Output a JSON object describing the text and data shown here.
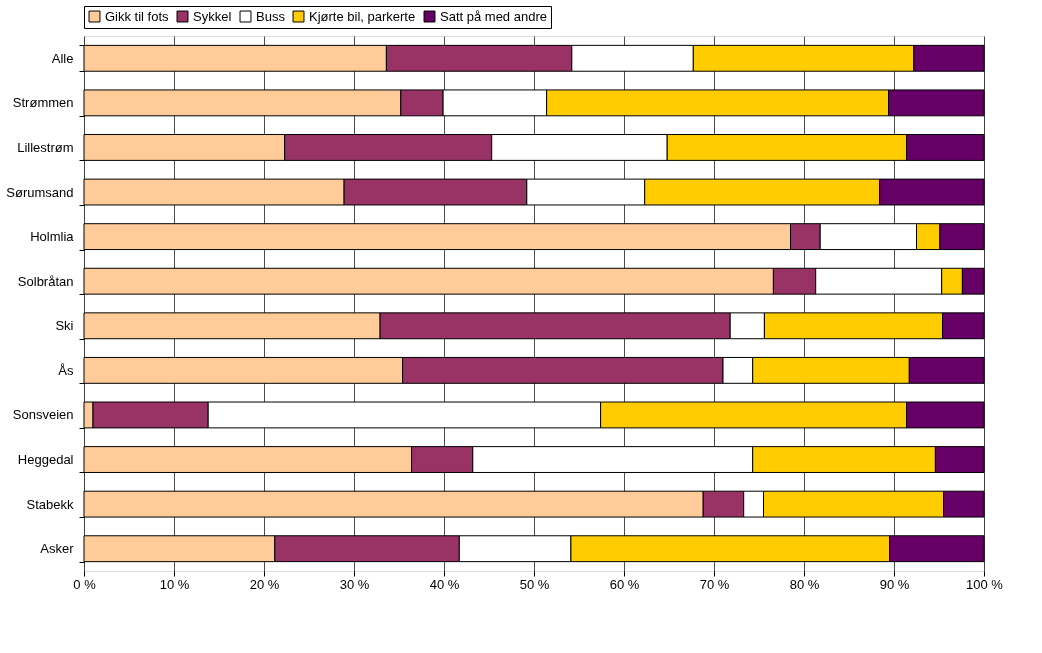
{
  "chart_data": {
    "type": "bar",
    "orientation": "horizontal",
    "stacked": true,
    "legend": "top",
    "grid": "x",
    "categories": [
      "Alle",
      "Strømmen",
      "Lillestrøm",
      "Sørumsand",
      "Holmlia",
      "Solbråtan",
      "Ski",
      "Ås",
      "Sonsveien",
      "Heggedal",
      "Stabekk",
      "Asker"
    ],
    "series": [
      {
        "name": "Gikk til fots",
        "color": "#ffcc99",
        "values": [
          33.6,
          35.2,
          22.3,
          28.9,
          78.5,
          76.6,
          32.9,
          35.4,
          1.0,
          36.4,
          68.8,
          21.2
        ]
      },
      {
        "name": "Sykkel",
        "color": "#993366",
        "values": [
          20.6,
          4.7,
          23.0,
          20.3,
          3.3,
          4.7,
          38.9,
          35.6,
          12.8,
          6.8,
          4.5,
          20.5
        ]
      },
      {
        "name": "Buss",
        "color": "#ffffff",
        "values": [
          13.5,
          11.5,
          19.5,
          13.1,
          10.7,
          14.0,
          3.8,
          3.3,
          43.6,
          31.1,
          2.2,
          12.4
        ]
      },
      {
        "name": "Kjørte bil, parkerte",
        "color": "#ffcc00",
        "values": [
          24.5,
          38.0,
          26.6,
          26.1,
          2.6,
          2.3,
          19.8,
          17.4,
          34.0,
          20.3,
          20.0,
          35.4
        ]
      },
      {
        "name": "Satt på med andre",
        "color": "#660066",
        "values": [
          7.8,
          10.6,
          8.6,
          11.6,
          4.9,
          2.4,
          4.6,
          8.3,
          8.6,
          5.4,
          4.5,
          10.5
        ]
      }
    ],
    "xlim": [
      0,
      100
    ],
    "xticks": [
      {
        "value": 0,
        "label": "0 %"
      },
      {
        "value": 10,
        "label": "10 %"
      },
      {
        "value": 20,
        "label": "20 %"
      },
      {
        "value": 30,
        "label": "30 %"
      },
      {
        "value": 40,
        "label": "40 %"
      },
      {
        "value": 50,
        "label": "50 %"
      },
      {
        "value": 60,
        "label": "60 %"
      },
      {
        "value": 70,
        "label": "70 %"
      },
      {
        "value": 80,
        "label": "80 %"
      },
      {
        "value": 90,
        "label": "90 %"
      },
      {
        "value": 100,
        "label": "100 %"
      }
    ]
  }
}
